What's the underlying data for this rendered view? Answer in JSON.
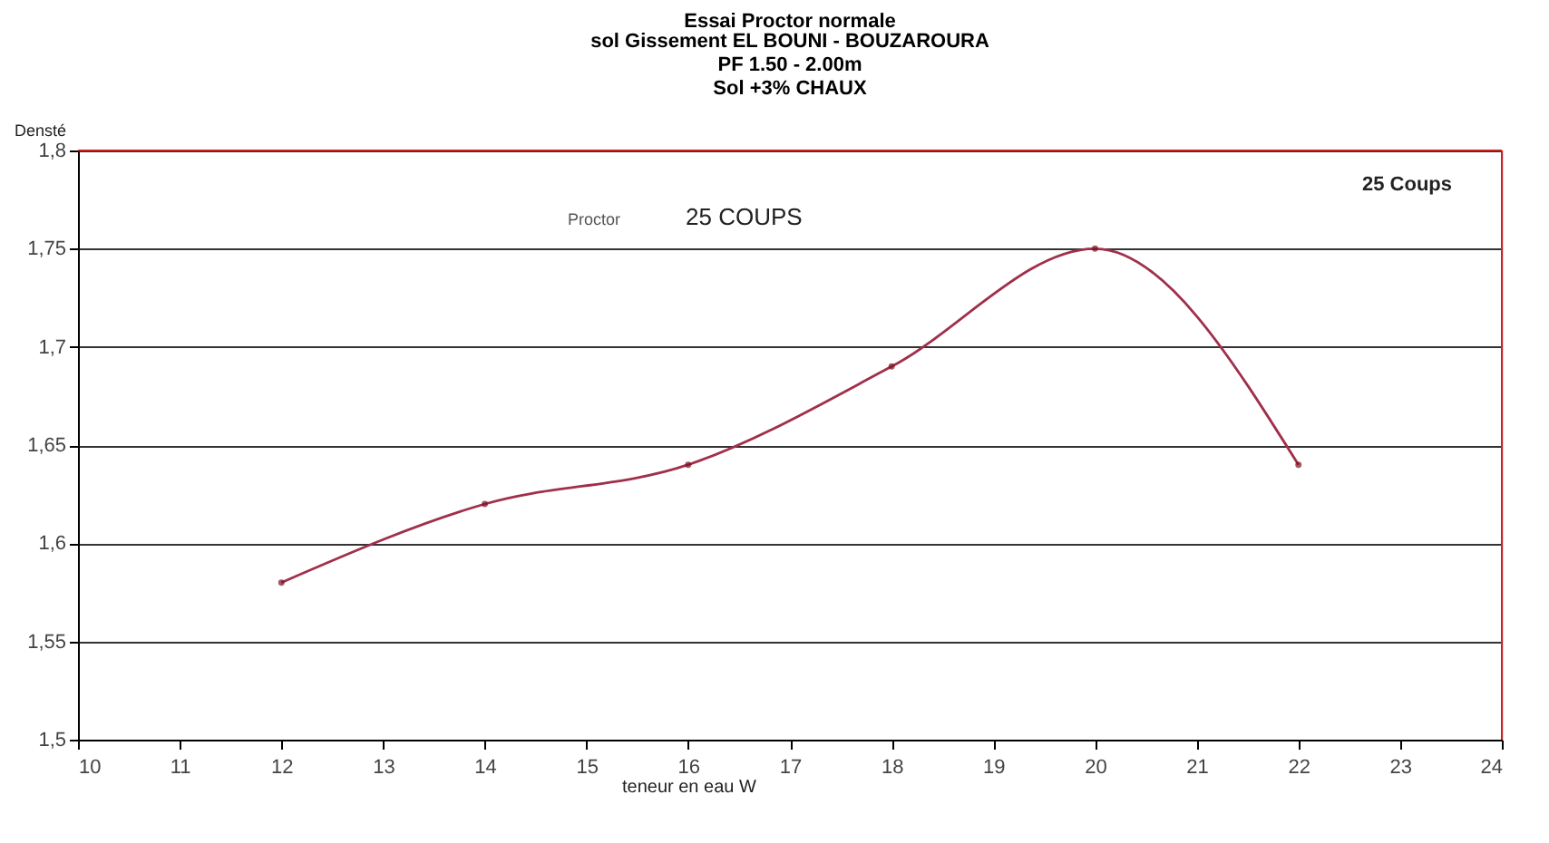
{
  "chart_data": {
    "type": "line",
    "title": "Essai Proctor normale",
    "subtitle": "sol  Gissement   EL BOUNI - BOUZAROURA\nPF 1.50 - 2.00m\nSol  +3% CHAUX",
    "xlabel": "teneur en eau    W",
    "ylabel": "Densté",
    "x": [
      12,
      14,
      16,
      18,
      20,
      22
    ],
    "series": [
      {
        "color": "#a0304a",
        "values": [
          1.58,
          1.62,
          1.64,
          1.69,
          1.75,
          1.64
        ]
      }
    ],
    "xlim": [
      10,
      24
    ],
    "xticks": [
      10,
      11,
      12,
      13,
      14,
      15,
      16,
      17,
      18,
      19,
      20,
      21,
      22,
      23,
      24
    ],
    "ylim": [
      1.5,
      1.8
    ],
    "yticks": [
      {
        "value": 1.5,
        "label": "1,5"
      },
      {
        "value": 1.55,
        "label": "1,55"
      },
      {
        "value": 1.6,
        "label": "1,6"
      },
      {
        "value": 1.65,
        "label": "1,65"
      },
      {
        "value": 1.7,
        "label": "1,7"
      },
      {
        "value": 1.75,
        "label": "1,75"
      },
      {
        "value": 1.8,
        "label": "1,8"
      }
    ],
    "grid": "y",
    "marker": "circle",
    "line_style": "solid",
    "annotations": [
      "Proctor",
      "25 COUPS",
      "25 Coups"
    ]
  }
}
